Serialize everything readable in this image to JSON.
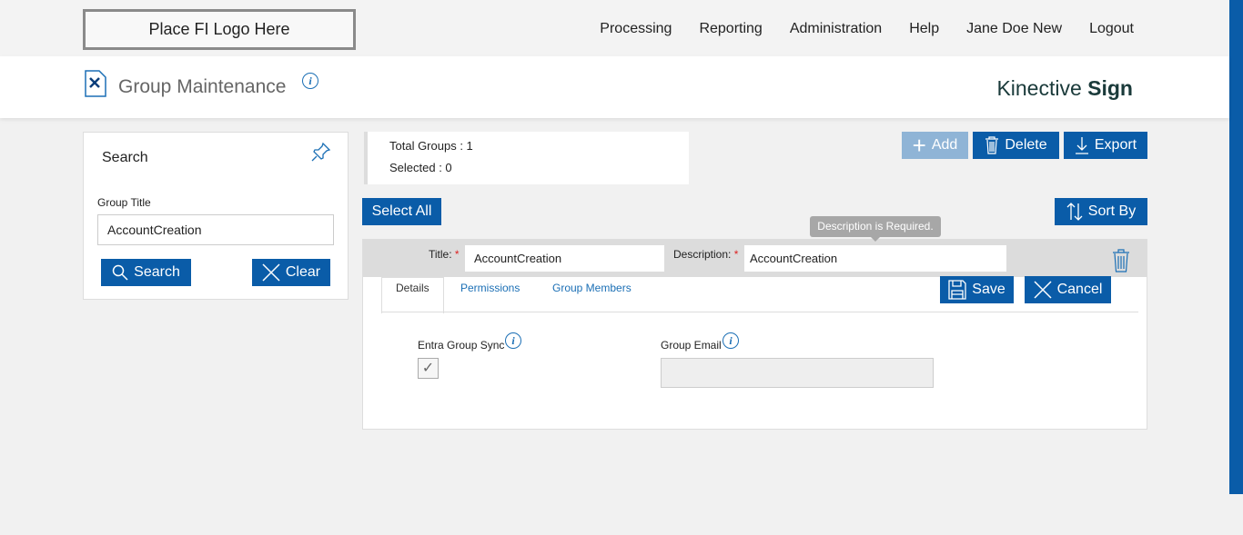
{
  "header": {
    "logo": "Place FI Logo Here",
    "nav": [
      "Processing",
      "Reporting",
      "Administration",
      "Help",
      "Jane Doe New",
      "Logout"
    ]
  },
  "page": {
    "title": "Group Maintenance",
    "brand_light": "Kinective ",
    "brand_bold": "Sign"
  },
  "search": {
    "heading": "Search",
    "field_label": "Group Title",
    "field_value": "AccountCreation",
    "search_label": "Search",
    "clear_label": "Clear"
  },
  "summary": {
    "total": "Total Groups : 1",
    "selected": "Selected : 0"
  },
  "toolbar": {
    "add": "Add",
    "delete": "Delete",
    "export": "Export",
    "select_all": "Select All",
    "sort_by": "Sort By"
  },
  "group": {
    "title_label": "Title:",
    "title_value": "AccountCreation",
    "desc_label": "Description:",
    "desc_value": "AccountCreation",
    "required": "*",
    "tooltip": "Description is Required.",
    "tabs": [
      "Details",
      "Permissions",
      "Group Members"
    ],
    "save": "Save",
    "cancel": "Cancel",
    "sync_label": "Entra Group Sync",
    "sync_checked": true,
    "email_label": "Group Email",
    "email_value": ""
  },
  "colors": {
    "primary": "#0a5ca8",
    "disabled": "#8fb4d6"
  }
}
